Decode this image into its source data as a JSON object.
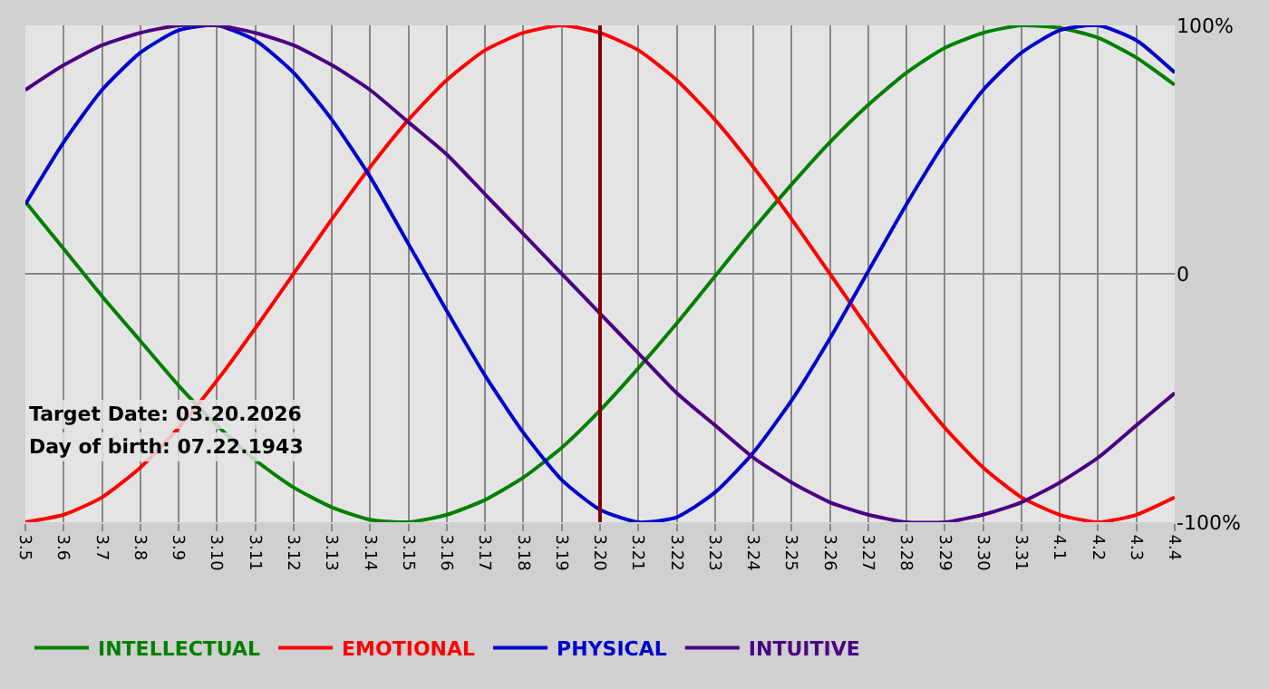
{
  "chart_data": {
    "type": "line",
    "categories": [
      "3.5",
      "3.6",
      "3.7",
      "3.8",
      "3.9",
      "3.10",
      "3.11",
      "3.12",
      "3.13",
      "3.14",
      "3.15",
      "3.16",
      "3.17",
      "3.18",
      "3.19",
      "3.20",
      "3.21",
      "3.22",
      "3.23",
      "3.24",
      "3.25",
      "3.26",
      "3.27",
      "3.28",
      "3.29",
      "3.30",
      "3.31",
      "4.1",
      "4.2",
      "4.3",
      "4.4"
    ],
    "series": [
      {
        "name": "INTELLECTUAL",
        "color": "#008000",
        "values": [
          0.29,
          0.1,
          -0.09,
          -0.27,
          -0.45,
          -0.61,
          -0.75,
          -0.86,
          -0.94,
          -0.99,
          -1.0,
          -0.97,
          -0.91,
          -0.82,
          -0.7,
          -0.55,
          -0.38,
          -0.2,
          -0.01,
          0.18,
          0.36,
          0.53,
          0.68,
          0.81,
          0.91,
          0.97,
          1.0,
          0.99,
          0.95,
          0.87,
          0.76
        ]
      },
      {
        "name": "EMOTIONAL",
        "color": "#ff0000",
        "values": [
          -1.0,
          -0.97,
          -0.9,
          -0.78,
          -0.62,
          -0.43,
          -0.22,
          0.0,
          0.22,
          0.43,
          0.62,
          0.78,
          0.9,
          0.97,
          1.0,
          0.97,
          0.9,
          0.78,
          0.62,
          0.43,
          0.22,
          0.0,
          -0.22,
          -0.43,
          -0.62,
          -0.78,
          -0.9,
          -0.97,
          -1.0,
          -0.97,
          -0.9
        ]
      },
      {
        "name": "PHYSICAL",
        "color": "#0000cc",
        "values": [
          0.28,
          0.53,
          0.74,
          0.89,
          0.98,
          1.0,
          0.94,
          0.81,
          0.62,
          0.39,
          0.12,
          -0.15,
          -0.41,
          -0.64,
          -0.83,
          -0.95,
          -1.0,
          -0.98,
          -0.88,
          -0.72,
          -0.51,
          -0.26,
          0.01,
          0.28,
          0.53,
          0.74,
          0.89,
          0.98,
          1.0,
          0.94,
          0.81
        ]
      },
      {
        "name": "INTUITIVE",
        "color": "#4b0082",
        "values": [
          0.74,
          0.84,
          0.92,
          0.97,
          1.0,
          1.0,
          0.97,
          0.92,
          0.84,
          0.74,
          0.61,
          0.48,
          0.32,
          0.16,
          0.0,
          -0.16,
          -0.32,
          -0.48,
          -0.61,
          -0.74,
          -0.84,
          -0.92,
          -0.97,
          -1.0,
          -1.0,
          -0.97,
          -0.92,
          -0.84,
          -0.74,
          -0.61,
          -0.48
        ]
      }
    ],
    "ylim": [
      -1,
      1
    ],
    "yticks": [
      {
        "value": 1,
        "label": "100%"
      },
      0,
      {
        "value": -1,
        "label": "-100%"
      }
    ],
    "ref_lines": [
      {
        "axis": "x",
        "value": "3.20",
        "color": "#800000"
      }
    ],
    "annotations": [
      "Target Date: 03.20.2026",
      "Day of birth: 07.22.1943"
    ],
    "grid": true,
    "legend": "bottom left",
    "marker": "none",
    "line_style": "solid"
  }
}
